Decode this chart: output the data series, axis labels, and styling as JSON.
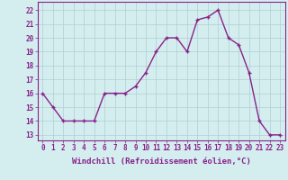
{
  "x": [
    0,
    1,
    2,
    3,
    4,
    5,
    6,
    7,
    8,
    9,
    10,
    11,
    12,
    13,
    14,
    15,
    16,
    17,
    18,
    19,
    20,
    21,
    22,
    23
  ],
  "y": [
    16,
    15,
    14,
    14,
    14,
    14,
    16,
    16,
    16,
    16.5,
    17.5,
    19,
    20,
    20,
    19,
    21.3,
    21.5,
    22,
    20,
    19.5,
    17.5,
    14,
    13,
    13
  ],
  "line_color": "#882288",
  "marker": "+",
  "marker_size": 3,
  "marker_linewidth": 1.0,
  "background_color": "#d4eef0",
  "grid_color": "#b0cdd0",
  "ylim": [
    12.6,
    22.6
  ],
  "yticks": [
    13,
    14,
    15,
    16,
    17,
    18,
    19,
    20,
    21,
    22
  ],
  "xticks": [
    0,
    1,
    2,
    3,
    4,
    5,
    6,
    7,
    8,
    9,
    10,
    11,
    12,
    13,
    14,
    15,
    16,
    17,
    18,
    19,
    20,
    21,
    22,
    23
  ],
  "xlabel": "Windchill (Refroidissement éolien,°C)",
  "xlabel_fontsize": 6.5,
  "tick_fontsize": 5.5,
  "line_width": 1.0
}
